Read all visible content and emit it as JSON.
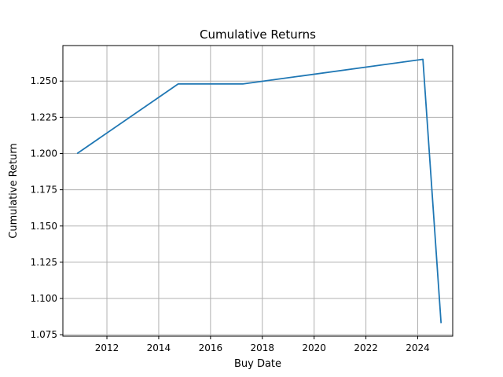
{
  "chart_data": {
    "type": "line",
    "title": "Cumulative Returns",
    "xlabel": "Buy Date",
    "ylabel": "Cumulative Return",
    "x_ticks": [
      "2012",
      "2014",
      "2016",
      "2018",
      "2020",
      "2022",
      "2024"
    ],
    "y_ticks": [
      "1.075",
      "1.100",
      "1.125",
      "1.150",
      "1.175",
      "1.200",
      "1.225",
      "1.250"
    ],
    "xlim": [
      2010.3,
      2025.35
    ],
    "ylim": [
      1.074,
      1.2745
    ],
    "grid": true,
    "series": [
      {
        "color": "#1f77b4",
        "points": [
          {
            "x": 2010.85,
            "y": 1.2
          },
          {
            "x": 2014.75,
            "y": 1.248
          },
          {
            "x": 2017.25,
            "y": 1.248
          },
          {
            "x": 2024.2,
            "y": 1.265
          },
          {
            "x": 2024.9,
            "y": 1.083
          }
        ]
      }
    ]
  }
}
